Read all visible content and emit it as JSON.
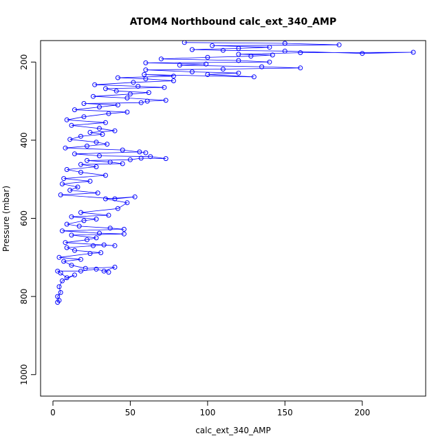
{
  "chart_data": {
    "type": "scatter",
    "title": "ATOM4 Northbound calc_ext_340_AMP",
    "xlabel": "calc_ext_340_AMP",
    "ylabel": "Pressure (mbar)",
    "xlim": [
      -8,
      241
    ],
    "ylim": [
      1055,
      145
    ],
    "y_reversed": true,
    "x_ticks": [
      0,
      50,
      100,
      150,
      200
    ],
    "x_tick_labels": [
      "0",
      "50",
      "100",
      "150",
      "200"
    ],
    "y_ticks": [
      200,
      400,
      600,
      800,
      1000
    ],
    "y_tick_labels": [
      "200",
      "400",
      "600",
      "800",
      "1000"
    ],
    "grid": false,
    "marker": "open-circle",
    "connected": true,
    "series_color": "#0000ff",
    "series": [
      {
        "points": [
          [
            3,
            815
          ],
          [
            4,
            810
          ],
          [
            3,
            800
          ],
          [
            5,
            790
          ],
          [
            4,
            775
          ],
          [
            6,
            760
          ],
          [
            14,
            745
          ],
          [
            9,
            752
          ],
          [
            5,
            740
          ],
          [
            3,
            735
          ],
          [
            18,
            735
          ],
          [
            28,
            730
          ],
          [
            36,
            738
          ],
          [
            33,
            735
          ],
          [
            40,
            725
          ],
          [
            21,
            728
          ],
          [
            12,
            720
          ],
          [
            7,
            710
          ],
          [
            18,
            705
          ],
          [
            4,
            700
          ],
          [
            24,
            690
          ],
          [
            31,
            688
          ],
          [
            14,
            682
          ],
          [
            9,
            675
          ],
          [
            26,
            670
          ],
          [
            33,
            668
          ],
          [
            40,
            670
          ],
          [
            8,
            662
          ],
          [
            22,
            655
          ],
          [
            28,
            650
          ],
          [
            12,
            643
          ],
          [
            46,
            640
          ],
          [
            30,
            638
          ],
          [
            6,
            632
          ],
          [
            46,
            628
          ],
          [
            37,
            625
          ],
          [
            17,
            620
          ],
          [
            9,
            615
          ],
          [
            20,
            606
          ],
          [
            28,
            602
          ],
          [
            12,
            596
          ],
          [
            36,
            592
          ],
          [
            18,
            585
          ],
          [
            42,
            575
          ],
          [
            48,
            560
          ],
          [
            34,
            550
          ],
          [
            53,
            545
          ],
          [
            40,
            550
          ],
          [
            5,
            540
          ],
          [
            29,
            535
          ],
          [
            11,
            528
          ],
          [
            16,
            520
          ],
          [
            6,
            512
          ],
          [
            24,
            505
          ],
          [
            7,
            498
          ],
          [
            34,
            490
          ],
          [
            18,
            482
          ],
          [
            9,
            475
          ],
          [
            28,
            468
          ],
          [
            18,
            462
          ],
          [
            45,
            460
          ],
          [
            37,
            456
          ],
          [
            22,
            452
          ],
          [
            50,
            450
          ],
          [
            57,
            446
          ],
          [
            73,
            447
          ],
          [
            63,
            442
          ],
          [
            30,
            440
          ],
          [
            14,
            435
          ],
          [
            56,
            430
          ],
          [
            60,
            432
          ],
          [
            45,
            425
          ],
          [
            8,
            420
          ],
          [
            22,
            415
          ],
          [
            35,
            410
          ],
          [
            28,
            405
          ],
          [
            11,
            398
          ],
          [
            18,
            390
          ],
          [
            32,
            385
          ],
          [
            24,
            380
          ],
          [
            40,
            376
          ],
          [
            30,
            370
          ],
          [
            12,
            362
          ],
          [
            34,
            355
          ],
          [
            9,
            348
          ],
          [
            20,
            340
          ],
          [
            36,
            332
          ],
          [
            48,
            328
          ],
          [
            14,
            322
          ],
          [
            30,
            315
          ],
          [
            42,
            310
          ],
          [
            20,
            306
          ],
          [
            57,
            304
          ],
          [
            61,
            300
          ],
          [
            73,
            298
          ],
          [
            48,
            292
          ],
          [
            26,
            288
          ],
          [
            50,
            282
          ],
          [
            62,
            278
          ],
          [
            41,
            274
          ],
          [
            34,
            268
          ],
          [
            72,
            265
          ],
          [
            55,
            262
          ],
          [
            27,
            258
          ],
          [
            52,
            252
          ],
          [
            78,
            248
          ],
          [
            60,
            243
          ],
          [
            42,
            240
          ],
          [
            78,
            236
          ],
          [
            59,
            232
          ],
          [
            130,
            238
          ],
          [
            100,
            232
          ],
          [
            120,
            228
          ],
          [
            90,
            225
          ],
          [
            60,
            220
          ],
          [
            110,
            218
          ],
          [
            160,
            215
          ],
          [
            135,
            212
          ],
          [
            82,
            208
          ],
          [
            99,
            205
          ],
          [
            60,
            202
          ],
          [
            140,
            200
          ],
          [
            120,
            196
          ],
          [
            70,
            192
          ],
          [
            100,
            188
          ],
          [
            128,
            185
          ],
          [
            142,
            182
          ],
          [
            120,
            180
          ],
          [
            160,
            176
          ],
          [
            233,
            175
          ],
          [
            200,
            178
          ],
          [
            150,
            172
          ],
          [
            110,
            170
          ],
          [
            90,
            168
          ],
          [
            120,
            165
          ],
          [
            140,
            162
          ],
          [
            103,
            158
          ],
          [
            185,
            156
          ],
          [
            150,
            152
          ],
          [
            85,
            150
          ]
        ]
      }
    ]
  }
}
